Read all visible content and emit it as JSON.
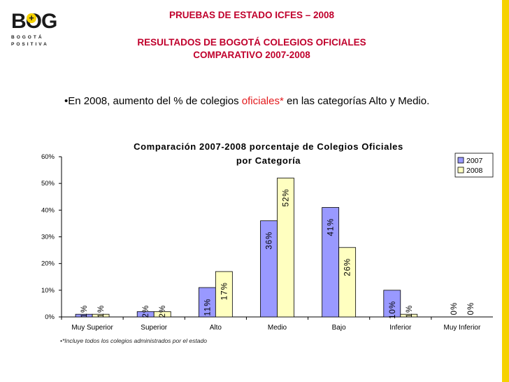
{
  "logo": {
    "bog": "BOG",
    "line1": "BOGOTÁ",
    "line2": "POSITIVA"
  },
  "header": {
    "line1": "PRUEBAS DE ESTADO ICFES – 2008",
    "line2": "RESULTADOS DE BOGOTÁ COLEGIOS OFICIALES",
    "line3": "COMPARATIVO 2007-2008"
  },
  "bullet": {
    "mark": "•",
    "before": "En 2008, aumento del % de colegios ",
    "highlight": "oficiales*",
    "after": " en las categorías Alto y Medio."
  },
  "footnote": "•*Incluye todos los colegios administrados por el estado",
  "colors": {
    "series2007": "#9999ff",
    "series2008": "#ffffc0",
    "header": "#c0002c",
    "accent": "#f6d200"
  },
  "chart_data": {
    "type": "bar",
    "title": "Comparación 2007-2008 porcentaje de Colegios Oficiales por Categoría",
    "categories": [
      "Muy Superior",
      "Superior",
      "Alto",
      "Medio",
      "Bajo",
      "Inferior",
      "Muy Inferior"
    ],
    "series": [
      {
        "name": "2007",
        "values": [
          1,
          2,
          11,
          36,
          41,
          10,
          0
        ],
        "labels": [
          "1%",
          "2%",
          "11%",
          "36%",
          "41%",
          "10%",
          "0%"
        ]
      },
      {
        "name": "2008",
        "values": [
          1,
          2,
          17,
          52,
          26,
          1,
          0
        ],
        "labels": [
          "1%",
          "2%",
          "17%",
          "52%",
          "26%",
          "1%",
          "0%"
        ]
      }
    ],
    "ylim": [
      0,
      60
    ],
    "yticks": [
      "0%",
      "10%",
      "20%",
      "30%",
      "40%",
      "50%",
      "60%"
    ],
    "legend": "top-right",
    "grid": false
  }
}
